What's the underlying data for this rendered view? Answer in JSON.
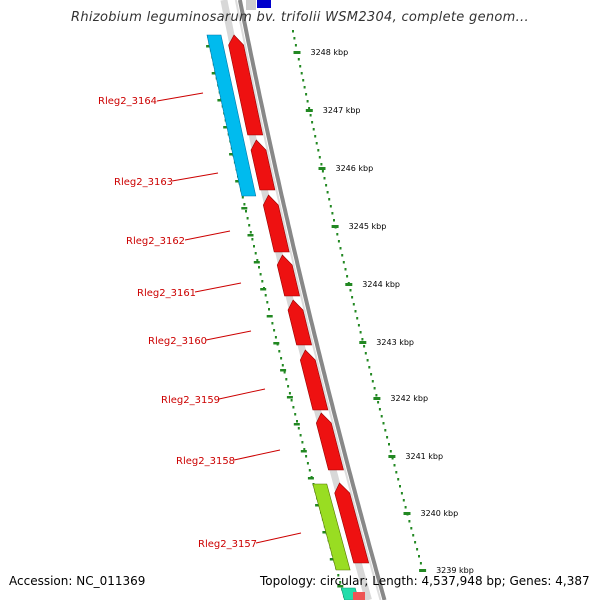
{
  "title": "Rhizobium leguminosarum bv. trifolii WSM2304, complete genom...",
  "footer": {
    "accession": "Accession: NC_011369",
    "topology": "Topology: circular; Length: 4,537,948 bp; Genes: 4,387"
  },
  "colors": {
    "forward_gene": "#ee1111",
    "reverse_gene": "#00bbee",
    "other_gene": "#99dd22",
    "ruler_tick": "#228822",
    "label_text": "#cc0000",
    "backbone": "#888888"
  },
  "ruler_ticks": [
    "3248 kbp",
    "3247 kbp",
    "3246 kbp",
    "3245 kbp",
    "3244 kbp",
    "3243 kbp",
    "3242 kbp",
    "3241 kbp",
    "3240 kbp",
    "3239 kbp"
  ],
  "gene_labels": [
    "Rleg2_3164",
    "Rleg2_3163",
    "Rleg2_3162",
    "Rleg2_3161",
    "Rleg2_3160",
    "Rleg2_3159",
    "Rleg2_3158",
    "Rleg2_3157"
  ]
}
